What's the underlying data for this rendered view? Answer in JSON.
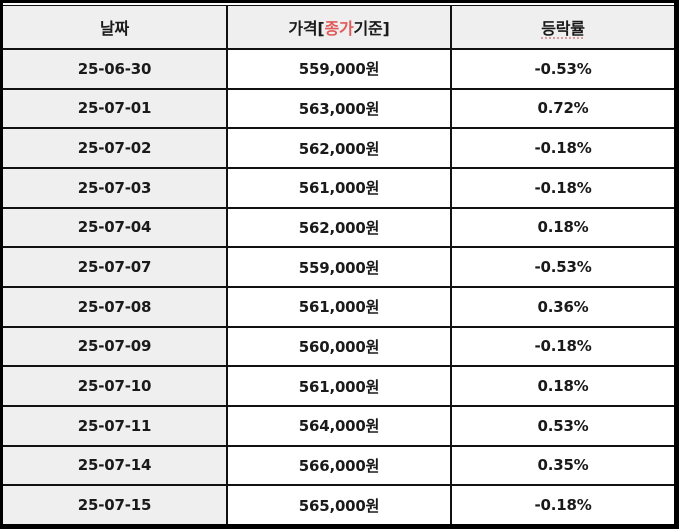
{
  "table": {
    "headers": {
      "date": "날짜",
      "price_prefix": "가격[",
      "price_highlight": "종가",
      "price_suffix": "기준]",
      "rate": "등락률"
    },
    "colors": {
      "price_text": "#a63a46",
      "header_highlight": "#e05a5a",
      "header_bg": "#efefef",
      "date_bg": "#efefef",
      "border": "#111111"
    },
    "rows": [
      {
        "date": "25-06-30",
        "price": "559,000원",
        "rate": "-0.53%"
      },
      {
        "date": "25-07-01",
        "price": "563,000원",
        "rate": "0.72%"
      },
      {
        "date": "25-07-02",
        "price": "562,000원",
        "rate": "-0.18%"
      },
      {
        "date": "25-07-03",
        "price": "561,000원",
        "rate": "-0.18%"
      },
      {
        "date": "25-07-04",
        "price": "562,000원",
        "rate": "0.18%"
      },
      {
        "date": "25-07-07",
        "price": "559,000원",
        "rate": "-0.53%"
      },
      {
        "date": "25-07-08",
        "price": "561,000원",
        "rate": "0.36%"
      },
      {
        "date": "25-07-09",
        "price": "560,000원",
        "rate": "-0.18%"
      },
      {
        "date": "25-07-10",
        "price": "561,000원",
        "rate": "0.18%"
      },
      {
        "date": "25-07-11",
        "price": "564,000원",
        "rate": "0.53%"
      },
      {
        "date": "25-07-14",
        "price": "566,000원",
        "rate": "0.35%"
      },
      {
        "date": "25-07-15",
        "price": "565,000원",
        "rate": "-0.18%"
      }
    ]
  }
}
